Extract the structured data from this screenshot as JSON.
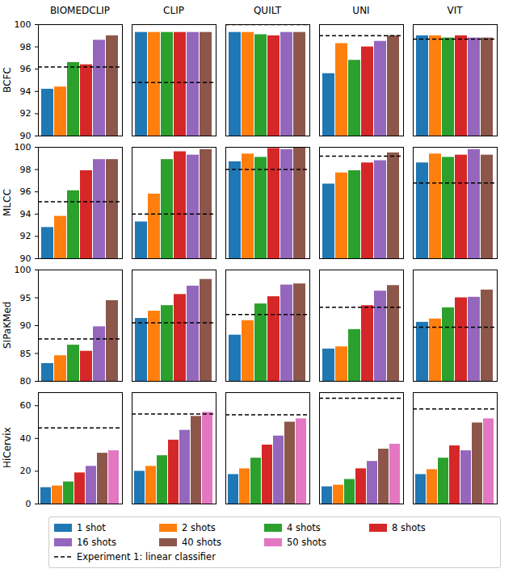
{
  "chart_data": {
    "type": "bar",
    "columns": [
      "BIOMEDCLIP",
      "CLIP",
      "QUILT",
      "UNI",
      "VIT"
    ],
    "series": [
      {
        "name": "1 shot",
        "color": "#1f77b4"
      },
      {
        "name": "2 shots",
        "color": "#ff7f0e"
      },
      {
        "name": "4 shots",
        "color": "#2ca02c"
      },
      {
        "name": "8 shots",
        "color": "#d62728"
      },
      {
        "name": "16 shots",
        "color": "#9467bd"
      },
      {
        "name": "40 shots",
        "color": "#8c564b"
      },
      {
        "name": "50 shots",
        "color": "#e377c2"
      }
    ],
    "reference": {
      "name": "Experiment 1: linear classifier",
      "line_style": "dashed",
      "color": "#000000"
    },
    "legend": "bottom",
    "tick_labels": "y",
    "rows": [
      {
        "label": "BCFC",
        "ylim": [
          90,
          100
        ],
        "yticks": [
          90,
          92,
          94,
          96,
          98,
          100
        ],
        "panels": [
          {
            "values": [
              94.2,
              94.4,
              96.6,
              96.4,
              98.6,
              99.0
            ],
            "reference": 96.2
          },
          {
            "values": [
              99.3,
              99.3,
              99.3,
              99.3,
              99.3,
              99.3
            ],
            "reference": 94.8
          },
          {
            "values": [
              99.3,
              99.3,
              99.1,
              99.0,
              99.3,
              99.3
            ],
            "reference": 100.0
          },
          {
            "values": [
              95.6,
              98.3,
              96.8,
              98.0,
              98.5,
              99.0
            ],
            "reference": 99.0
          },
          {
            "values": [
              99.0,
              99.0,
              98.8,
              99.0,
              98.8,
              98.8
            ],
            "reference": 98.7
          }
        ]
      },
      {
        "label": "MLCC",
        "ylim": [
          90,
          100
        ],
        "yticks": [
          90,
          92,
          94,
          96,
          98,
          100
        ],
        "panels": [
          {
            "values": [
              92.8,
              93.8,
              96.1,
              97.9,
              98.9,
              98.9
            ],
            "reference": 95.1
          },
          {
            "values": [
              93.3,
              95.8,
              98.9,
              99.6,
              99.3,
              99.8
            ],
            "reference": 94.0
          },
          {
            "values": [
              98.7,
              99.4,
              99.1,
              99.9,
              99.8,
              100.0
            ],
            "reference": 98.0
          },
          {
            "values": [
              96.7,
              97.7,
              97.9,
              98.6,
              98.8,
              99.5
            ],
            "reference": 99.2
          },
          {
            "values": [
              98.6,
              99.4,
              99.1,
              99.3,
              99.8,
              99.3
            ],
            "reference": 96.8
          }
        ]
      },
      {
        "label": "SIPaKMed",
        "ylim": [
          80,
          100
        ],
        "yticks": [
          80,
          85,
          90,
          95,
          100
        ],
        "panels": [
          {
            "values": [
              83.2,
              84.6,
              86.5,
              85.4,
              89.8,
              94.5
            ],
            "reference": 87.6
          },
          {
            "values": [
              91.3,
              92.6,
              93.6,
              95.6,
              97.1,
              98.3
            ],
            "reference": 90.5
          },
          {
            "values": [
              88.3,
              90.9,
              93.9,
              95.2,
              97.3,
              97.5
            ],
            "reference": 92.0
          },
          {
            "values": [
              85.8,
              86.2,
              89.3,
              93.6,
              96.2,
              97.2
            ],
            "reference": 93.3
          },
          {
            "values": [
              90.6,
              91.2,
              93.2,
              95.0,
              95.1,
              96.4
            ],
            "reference": 89.7
          }
        ]
      },
      {
        "label": "HiCervix",
        "ylim": [
          0,
          68
        ],
        "yticks": [
          0,
          20,
          40,
          60
        ],
        "panels": [
          {
            "values": [
              10,
              11,
              13.5,
              19,
              23,
              31,
              32.5
            ],
            "reference": 46.5
          },
          {
            "values": [
              20,
              23,
              29.5,
              39,
              45,
              53.5,
              56
            ],
            "reference": 55
          },
          {
            "values": [
              18,
              21.5,
              28,
              36,
              41.5,
              50,
              52
            ],
            "reference": 54.5
          },
          {
            "values": [
              10.5,
              11.5,
              15,
              21.5,
              26,
              33.5,
              36.5
            ],
            "reference": 64.5
          },
          {
            "values": [
              18,
              21,
              28,
              35.5,
              32.5,
              49.5,
              52
            ],
            "reference": 58
          }
        ]
      }
    ]
  }
}
